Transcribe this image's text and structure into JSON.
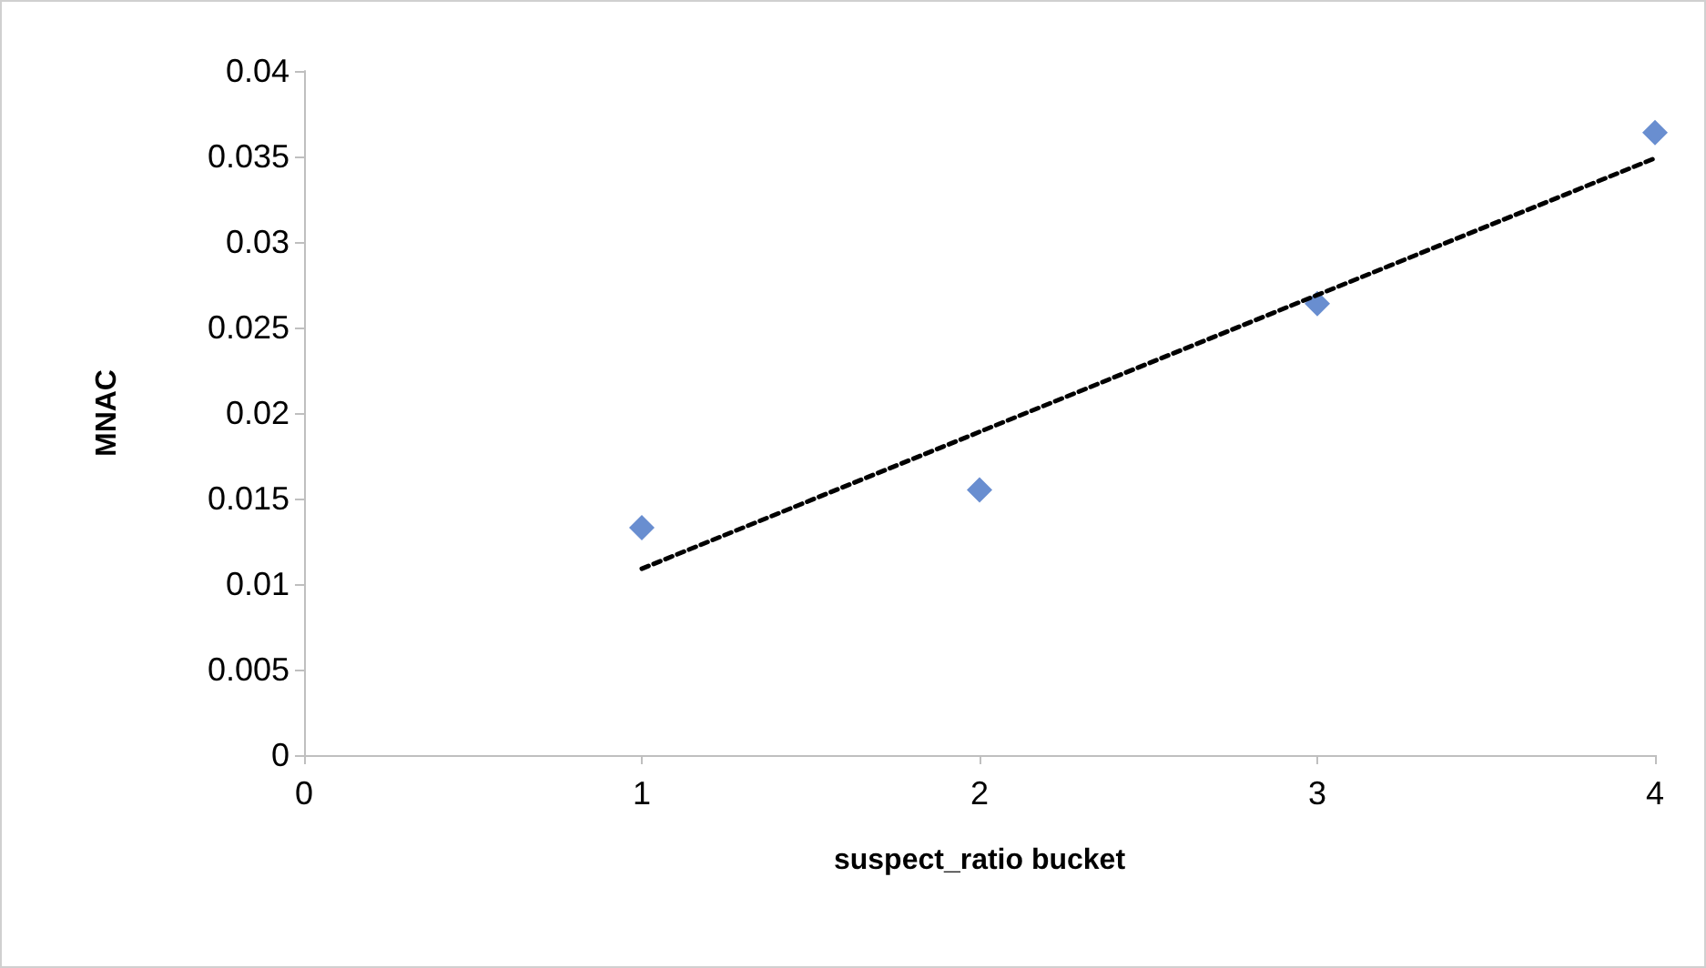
{
  "chart_data": {
    "type": "scatter",
    "xlabel": "suspect_ratio bucket",
    "ylabel": "MNAC",
    "x": [
      1,
      2,
      3,
      4
    ],
    "series": [
      {
        "color": "#4472c4",
        "marker": "diamond",
        "values": [
          0.0133,
          0.0155,
          0.0264,
          0.0364
        ]
      },
      {
        "type": "line",
        "color": "#000000",
        "marker": "none",
        "line_style": "dashed",
        "x": [
          1,
          4
        ],
        "values": [
          0.0109,
          0.0349
        ]
      }
    ],
    "xlim": [
      0,
      4
    ],
    "xticks": [
      0,
      1,
      2,
      3,
      4
    ],
    "ylim": [
      0,
      0.04
    ],
    "yticks": [
      0,
      0.005,
      0.01,
      0.015,
      0.02,
      0.025,
      0.03,
      0.035,
      0.04
    ],
    "grid": false
  }
}
